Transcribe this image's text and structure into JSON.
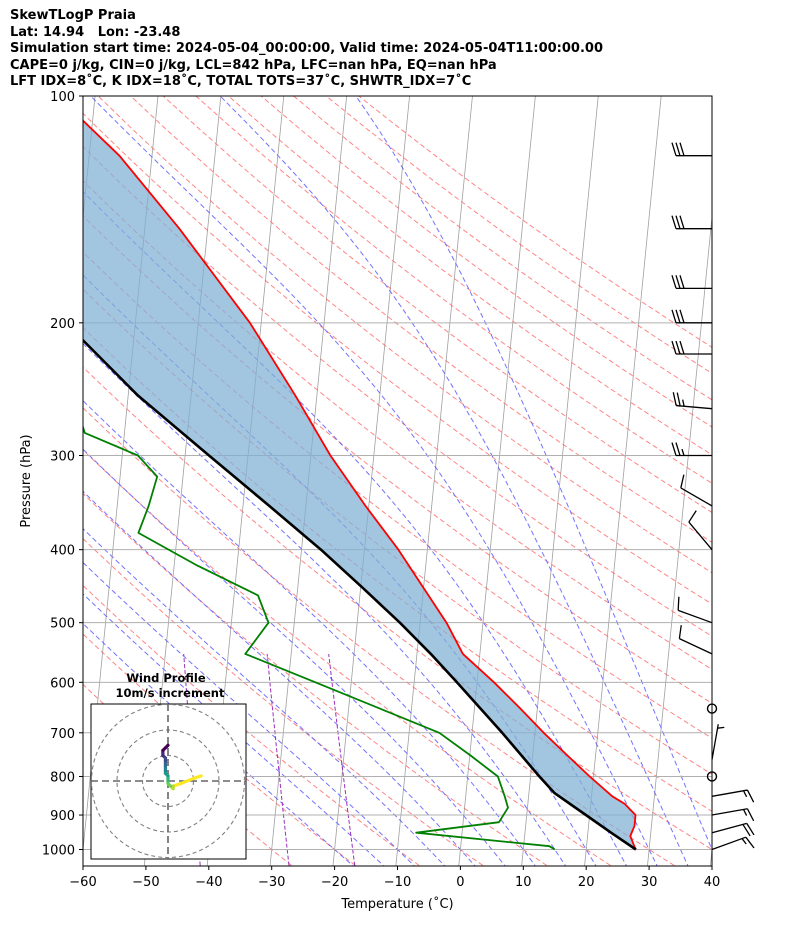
{
  "header": {
    "line1": "SkewTLogP Praia",
    "line2": "Lat: 14.94   Lon: -23.48",
    "line3": "Simulation start time: 2024-05-04_00:00:00, Valid time: 2024-05-04T11:00:00.00",
    "line4": "CAPE=0 j/kg, CIN=0 j/kg, LCL=842 hPa, LFC=nan hPa, EQ=nan hPa",
    "line5": "LFT IDX=8˚C, K IDX=18˚C, TOTAL TOTS=37˚C, SHWTR_IDX=7˚C"
  },
  "colors": {
    "temperature": "#ff0000",
    "dewpoint": "#008000",
    "parcel": "#000000",
    "shade": "#7fb0d4",
    "isotherm": "#a0a0a0",
    "dry_adiabat": "#ff6666",
    "moist_adiabat": "#5a5aff",
    "mixing_ratio": "#9b2fbf",
    "grid": "#b0b0b0"
  },
  "chart_data": {
    "type": "line",
    "xlabel": "Temperature (˚C)",
    "ylabel": "Pressure (hPa)",
    "xlim": [
      -60,
      40
    ],
    "ylim": [
      1040,
      100
    ],
    "y_scale": "log",
    "x_ticks": [
      "−60",
      "−50",
      "−40",
      "−30",
      "−20",
      "−10",
      "0",
      "10",
      "20",
      "30",
      "40"
    ],
    "y_ticks": [
      "100",
      "200",
      "300",
      "400",
      "500",
      "600",
      "700",
      "800",
      "900",
      "1000"
    ],
    "x_tick_values": [
      -60,
      -50,
      -40,
      -30,
      -20,
      -10,
      0,
      10,
      20,
      30,
      40
    ],
    "y_tick_values": [
      100,
      200,
      300,
      400,
      500,
      600,
      700,
      800,
      900,
      1000
    ],
    "skew_per_decade": 75,
    "series": [
      {
        "key": "temperature",
        "points": [
          [
            100,
            -76
          ],
          [
            120,
            -65.2
          ],
          [
            150,
            -54.5
          ],
          [
            200,
            -41.8
          ],
          [
            250,
            -33.4
          ],
          [
            300,
            -26.9
          ],
          [
            350,
            -20.5
          ],
          [
            400,
            -14.6
          ],
          [
            500,
            -5.8
          ],
          [
            550,
            -2.7
          ],
          [
            600,
            2.7
          ],
          [
            650,
            7.3
          ],
          [
            700,
            11.4
          ],
          [
            750,
            15.5
          ],
          [
            800,
            19.4
          ],
          [
            850,
            23.3
          ],
          [
            870,
            25.4
          ],
          [
            900,
            27.3
          ],
          [
            930,
            27.3
          ],
          [
            960,
            26.8
          ],
          [
            990,
            27.6
          ],
          [
            1000,
            27.9
          ]
        ]
      },
      {
        "key": "dewpoint",
        "points": [
          [
            100,
            -86
          ],
          [
            120,
            -88.8
          ],
          [
            150,
            -83.8
          ],
          [
            200,
            -72.4
          ],
          [
            220,
            -70.3
          ],
          [
            250,
            -68.8
          ],
          [
            280,
            -66.3
          ],
          [
            300,
            -57.5
          ],
          [
            320,
            -54.1
          ],
          [
            350,
            -55.0
          ],
          [
            380,
            -56.2
          ],
          [
            420,
            -46.3
          ],
          [
            460,
            -36.2
          ],
          [
            500,
            -34.1
          ],
          [
            550,
            -37.3
          ],
          [
            600,
            -25.7
          ],
          [
            700,
            -5.2
          ],
          [
            750,
            0.1
          ],
          [
            800,
            4.8
          ],
          [
            850,
            6.2
          ],
          [
            880,
            6.9
          ],
          [
            920,
            5.7
          ],
          [
            950,
            -7.3
          ],
          [
            990,
            14.1
          ],
          [
            1000,
            15.0
          ]
        ]
      },
      {
        "key": "parcel",
        "points": [
          [
            100,
            -101.1
          ],
          [
            150,
            -85.3
          ],
          [
            200,
            -71.1
          ],
          [
            250,
            -58.4
          ],
          [
            300,
            -46.2
          ],
          [
            350,
            -35.8
          ],
          [
            400,
            -26.9
          ],
          [
            450,
            -19.6
          ],
          [
            500,
            -13.2
          ],
          [
            550,
            -7.8
          ],
          [
            600,
            -3.2
          ],
          [
            700,
            4.8
          ],
          [
            800,
            11.4
          ],
          [
            842,
            14.1
          ],
          [
            900,
            19.4
          ],
          [
            950,
            23.7
          ],
          [
            1000,
            27.9
          ]
        ]
      }
    ],
    "wind_barbs": [
      {
        "p": 120,
        "dir": 270,
        "speed_kt": 30
      },
      {
        "p": 150,
        "dir": 270,
        "speed_kt": 30
      },
      {
        "p": 180,
        "dir": 270,
        "speed_kt": 30
      },
      {
        "p": 200,
        "dir": 270,
        "speed_kt": 30
      },
      {
        "p": 220,
        "dir": 270,
        "speed_kt": 30
      },
      {
        "p": 260,
        "dir": 275,
        "speed_kt": 25
      },
      {
        "p": 300,
        "dir": 270,
        "speed_kt": 25
      },
      {
        "p": 350,
        "dir": 300,
        "speed_kt": 10
      },
      {
        "p": 400,
        "dir": 320,
        "speed_kt": 10
      },
      {
        "p": 500,
        "dir": 290,
        "speed_kt": 10
      },
      {
        "p": 550,
        "dir": 295,
        "speed_kt": 10
      },
      {
        "p": 650,
        "dir": 0,
        "speed_kt": 0
      },
      {
        "p": 760,
        "dir": 10,
        "speed_kt": 5
      },
      {
        "p": 800,
        "dir": 0,
        "speed_kt": 0
      },
      {
        "p": 850,
        "dir": 80,
        "speed_kt": 15
      },
      {
        "p": 900,
        "dir": 80,
        "speed_kt": 15
      },
      {
        "p": 950,
        "dir": 75,
        "speed_kt": 20
      },
      {
        "p": 1000,
        "dir": 70,
        "speed_kt": 15
      }
    ],
    "hodograph": {
      "title": "Wind Profile",
      "subtitle": "10m/s increment",
      "rings_ms": [
        10,
        20,
        30
      ],
      "points_uv": [
        [
          13,
          2
        ],
        [
          10,
          1
        ],
        [
          5,
          -1
        ],
        [
          2,
          -2
        ],
        [
          2,
          -3
        ],
        [
          1,
          -2
        ],
        [
          0,
          -1
        ],
        [
          0,
          0
        ],
        [
          0,
          1
        ],
        [
          0,
          2
        ],
        [
          -1,
          3
        ],
        [
          -1,
          4
        ],
        [
          -1,
          5
        ],
        [
          -1,
          6
        ],
        [
          -1,
          7
        ],
        [
          -1,
          8
        ],
        [
          -1,
          9
        ],
        [
          -2,
          10
        ],
        [
          -2,
          11
        ],
        [
          -2,
          12
        ],
        [
          -1,
          13
        ],
        [
          0,
          14
        ]
      ]
    }
  }
}
